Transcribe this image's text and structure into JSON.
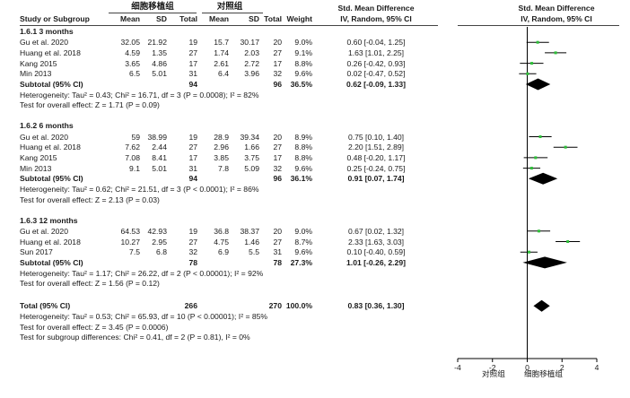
{
  "header": {
    "group_exp": "细胞移植组",
    "group_ctrl": "对照组",
    "smd_title": "Std. Mean Difference",
    "smd_method": "IV, Random, 95% CI",
    "plot_title": "Std. Mean Difference",
    "plot_method": "IV, Random, 95% CI",
    "col_study": "Study or Subgroup",
    "col_mean": "Mean",
    "col_sd": "SD",
    "col_total": "Total",
    "col_weight": "Weight"
  },
  "subgroups": [
    {
      "title": "1.6.1 3 months",
      "studies": [
        {
          "name": "Gu et al. 2020",
          "m1": "32.05",
          "sd1": "21.92",
          "n1": "19",
          "m2": "15.7",
          "sd2": "30.17",
          "n2": "20",
          "weight": "9.0%",
          "ci": "0.60 [-0.04, 1.25]"
        },
        {
          "name": "Huang et al. 2018",
          "m1": "4.59",
          "sd1": "1.35",
          "n1": "27",
          "m2": "1.74",
          "sd2": "2.03",
          "n2": "27",
          "weight": "9.1%",
          "ci": "1.63 [1.01, 2.25]"
        },
        {
          "name": "Kang 2015",
          "m1": "3.65",
          "sd1": "4.86",
          "n1": "17",
          "m2": "2.61",
          "sd2": "2.72",
          "n2": "17",
          "weight": "8.8%",
          "ci": "0.26 [-0.42, 0.93]"
        },
        {
          "name": "Min 2013",
          "m1": "6.5",
          "sd1": "5.01",
          "n1": "31",
          "m2": "6.4",
          "sd2": "3.96",
          "n2": "32",
          "weight": "9.6%",
          "ci": "0.02 [-0.47, 0.52]"
        }
      ],
      "subtotal": {
        "label": "Subtotal (95% CI)",
        "n1": "94",
        "n2": "96",
        "weight": "36.5%",
        "ci": "0.62 [-0.09, 1.33]"
      },
      "heterogeneity": "Heterogeneity: Tau² = 0.43; Chi² = 16.71, df = 3 (P = 0.0008); I² = 82%",
      "overall_test": "Test for overall effect: Z = 1.71 (P = 0.09)"
    },
    {
      "title": "1.6.2 6 months",
      "studies": [
        {
          "name": "Gu et al. 2020",
          "m1": "59",
          "sd1": "38.99",
          "n1": "19",
          "m2": "28.9",
          "sd2": "39.34",
          "n2": "20",
          "weight": "8.9%",
          "ci": "0.75 [0.10, 1.40]"
        },
        {
          "name": "Huang et al. 2018",
          "m1": "7.62",
          "sd1": "2.44",
          "n1": "27",
          "m2": "2.96",
          "sd2": "1.66",
          "n2": "27",
          "weight": "8.8%",
          "ci": "2.20 [1.51, 2.89]"
        },
        {
          "name": "Kang 2015",
          "m1": "7.08",
          "sd1": "8.41",
          "n1": "17",
          "m2": "3.85",
          "sd2": "3.75",
          "n2": "17",
          "weight": "8.8%",
          "ci": "0.48 [-0.20, 1.17]"
        },
        {
          "name": "Min 2013",
          "m1": "9.1",
          "sd1": "5.01",
          "n1": "31",
          "m2": "7.8",
          "sd2": "5.09",
          "n2": "32",
          "weight": "9.6%",
          "ci": "0.25 [-0.24, 0.75]"
        }
      ],
      "subtotal": {
        "label": "Subtotal (95% CI)",
        "n1": "94",
        "n2": "96",
        "weight": "36.1%",
        "ci": "0.91 [0.07, 1.74]"
      },
      "heterogeneity": "Heterogeneity: Tau² = 0.62; Chi² = 21.51, df = 3 (P < 0.0001); I² = 86%",
      "overall_test": "Test for overall effect: Z = 2.13 (P = 0.03)"
    },
    {
      "title": "1.6.3 12 months",
      "studies": [
        {
          "name": "Gu et al. 2020",
          "m1": "64.53",
          "sd1": "42.93",
          "n1": "19",
          "m2": "36.8",
          "sd2": "38.37",
          "n2": "20",
          "weight": "9.0%",
          "ci": "0.67 [0.02, 1.32]"
        },
        {
          "name": "Huang et al. 2018",
          "m1": "10.27",
          "sd1": "2.95",
          "n1": "27",
          "m2": "4.75",
          "sd2": "1.46",
          "n2": "27",
          "weight": "8.7%",
          "ci": "2.33 [1.63, 3.03]"
        },
        {
          "name": "Sun 2017",
          "m1": "7.5",
          "sd1": "6.8",
          "n1": "32",
          "m2": "6.9",
          "sd2": "5.5",
          "n2": "31",
          "weight": "9.6%",
          "ci": "0.10 [-0.40, 0.59]"
        }
      ],
      "subtotal": {
        "label": "Subtotal (95% CI)",
        "n1": "78",
        "n2": "78",
        "weight": "27.3%",
        "ci": "1.01 [-0.26, 2.29]"
      },
      "heterogeneity": "Heterogeneity: Tau² = 1.17; Chi² = 26.22, df = 2 (P < 0.00001); I² = 92%",
      "overall_test": "Test for overall effect: Z = 1.56 (P = 0.12)"
    }
  ],
  "total": {
    "label": "Total (95% CI)",
    "n1": "266",
    "n2": "270",
    "weight": "100.0%",
    "ci": "0.83 [0.36, 1.30]"
  },
  "total_heterogeneity": "Heterogeneity: Tau² = 0.53; Chi² = 65.93, df = 10 (P < 0.00001); I² = 85%",
  "total_overall_test": "Test for overall effect: Z = 3.45 (P = 0.0006)",
  "subgroup_differences": "Test for subgroup differences: Chi² = 0.41, df = 2 (P = 0.81), I² = 0%",
  "axis": {
    "xlim": [
      -4,
      4
    ],
    "ticks": [
      "-4",
      "-2",
      "0",
      "2",
      "4"
    ],
    "favours_left": "对照组",
    "favours_right": "细胞移植组"
  },
  "colors": {
    "square": "#2fbf3a",
    "line": "#000000",
    "diamond": "#000000"
  },
  "chart_data": {
    "type": "forest",
    "title": "Std. Mean Difference",
    "xlabel": "",
    "xlim": [
      -4,
      4
    ],
    "ticks": [
      -4,
      -2,
      0,
      2,
      4
    ],
    "studies": [
      {
        "subgroup": "1.6.1 3 months",
        "name": "Gu et al. 2020",
        "est": 0.6,
        "lo": -0.04,
        "hi": 1.25,
        "weight": 9.0
      },
      {
        "subgroup": "1.6.1 3 months",
        "name": "Huang et al. 2018",
        "est": 1.63,
        "lo": 1.01,
        "hi": 2.25,
        "weight": 9.1
      },
      {
        "subgroup": "1.6.1 3 months",
        "name": "Kang 2015",
        "est": 0.26,
        "lo": -0.42,
        "hi": 0.93,
        "weight": 8.8
      },
      {
        "subgroup": "1.6.1 3 months",
        "name": "Min 2013",
        "est": 0.02,
        "lo": -0.47,
        "hi": 0.52,
        "weight": 9.6
      },
      {
        "subgroup": "1.6.2 6 months",
        "name": "Gu et al. 2020",
        "est": 0.75,
        "lo": 0.1,
        "hi": 1.4,
        "weight": 8.9
      },
      {
        "subgroup": "1.6.2 6 months",
        "name": "Huang et al. 2018",
        "est": 2.2,
        "lo": 1.51,
        "hi": 2.89,
        "weight": 8.8
      },
      {
        "subgroup": "1.6.2 6 months",
        "name": "Kang 2015",
        "est": 0.48,
        "lo": -0.2,
        "hi": 1.17,
        "weight": 8.8
      },
      {
        "subgroup": "1.6.2 6 months",
        "name": "Min 2013",
        "est": 0.25,
        "lo": -0.24,
        "hi": 0.75,
        "weight": 9.6
      },
      {
        "subgroup": "1.6.3 12 months",
        "name": "Gu et al. 2020",
        "est": 0.67,
        "lo": 0.02,
        "hi": 1.32,
        "weight": 9.0
      },
      {
        "subgroup": "1.6.3 12 months",
        "name": "Huang et al. 2018",
        "est": 2.33,
        "lo": 1.63,
        "hi": 3.03,
        "weight": 8.7
      },
      {
        "subgroup": "1.6.3 12 months",
        "name": "Sun 2017",
        "est": 0.1,
        "lo": -0.4,
        "hi": 0.59,
        "weight": 9.6
      }
    ],
    "pooled": [
      {
        "name": "Subtotal 1.6.1 3 months",
        "est": 0.62,
        "lo": -0.09,
        "hi": 1.33
      },
      {
        "name": "Subtotal 1.6.2 6 months",
        "est": 0.91,
        "lo": 0.07,
        "hi": 1.74
      },
      {
        "name": "Subtotal 1.6.3 12 months",
        "est": 1.01,
        "lo": -0.26,
        "hi": 2.29
      },
      {
        "name": "Total",
        "est": 0.83,
        "lo": 0.36,
        "hi": 1.3
      }
    ]
  }
}
